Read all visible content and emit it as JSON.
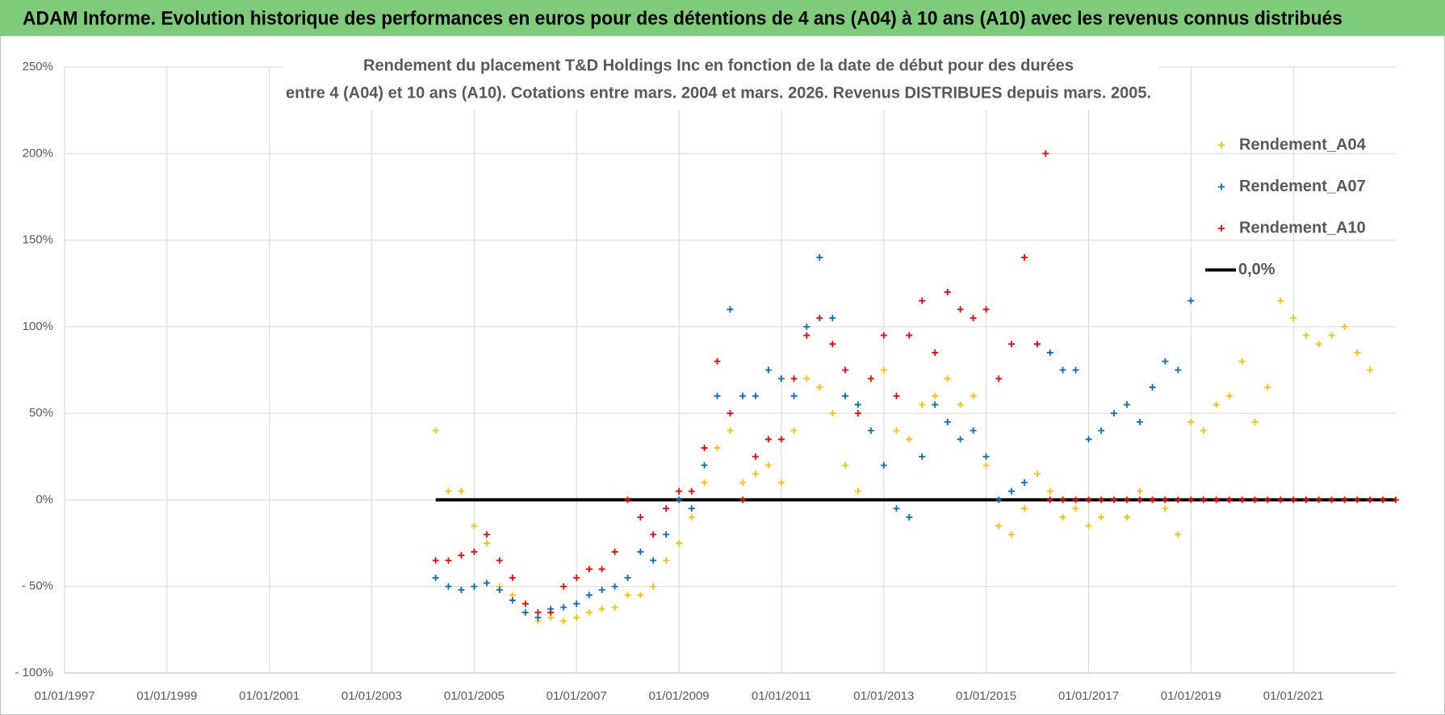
{
  "header": {
    "title": "ADAM Informe. Evolution historique des performances en euros pour des détentions de 4 ans (A04) à 10 ans (A10) avec les revenus connus distribués"
  },
  "chart_data": {
    "type": "scatter",
    "title": [
      "Rendement du placement T&D Holdings Inc en fonction de la date de début pour des durées",
      "entre 4 (A04) et 10 ans (A10). Cotations entre mars. 2004 et mars. 2026. Revenus DISTRIBUES depuis mars. 2005."
    ],
    "xlim": [
      "1997-01-01",
      "2023-01-01"
    ],
    "xticks": [
      {
        "value": "1997-01-01",
        "label": "01/01/1997"
      },
      {
        "value": "1999-01-01",
        "label": "01/01/1999"
      },
      {
        "value": "2001-01-01",
        "label": "01/01/2001"
      },
      {
        "value": "2003-01-01",
        "label": "01/01/2003"
      },
      {
        "value": "2005-01-01",
        "label": "01/01/2005"
      },
      {
        "value": "2007-01-01",
        "label": "01/01/2007"
      },
      {
        "value": "2009-01-01",
        "label": "01/01/2009"
      },
      {
        "value": "2011-01-01",
        "label": "01/01/2011"
      },
      {
        "value": "2013-01-01",
        "label": "01/01/2013"
      },
      {
        "value": "2015-01-01",
        "label": "01/01/2015"
      },
      {
        "value": "2017-01-01",
        "label": "01/01/2017"
      },
      {
        "value": "2019-01-01",
        "label": "01/01/2019"
      },
      {
        "value": "2021-01-01",
        "label": "01/01/2021"
      }
    ],
    "ylim": [
      -100,
      250
    ],
    "yticks": [
      {
        "value": -100,
        "label": "- 100%"
      },
      {
        "value": -50,
        "label": "- 50%"
      },
      {
        "value": 0,
        "label": "0%"
      },
      {
        "value": 50,
        "label": "50%"
      },
      {
        "value": 100,
        "label": "100%"
      },
      {
        "value": 150,
        "label": "150%"
      },
      {
        "value": 200,
        "label": "200%"
      },
      {
        "value": 250,
        "label": "250%"
      }
    ],
    "grid": true,
    "legend": "right",
    "series": [
      {
        "name": "Rendement_A04",
        "color": "#ffc000",
        "x": [
          "2004-04-01",
          "2004-07-01",
          "2004-10-01",
          "2005-01-01",
          "2005-04-01",
          "2005-07-01",
          "2005-10-01",
          "2006-01-01",
          "2006-04-01",
          "2006-07-01",
          "2006-10-01",
          "2007-01-01",
          "2007-04-01",
          "2007-07-01",
          "2007-10-01",
          "2008-01-01",
          "2008-04-01",
          "2008-07-01",
          "2008-10-01",
          "2009-01-01",
          "2009-04-01",
          "2009-07-01",
          "2009-10-01",
          "2010-01-01",
          "2010-04-01",
          "2010-07-01",
          "2010-10-01",
          "2011-01-01",
          "2011-04-01",
          "2011-07-01",
          "2011-10-01",
          "2012-01-01",
          "2012-04-01",
          "2012-07-01",
          "2012-10-01",
          "2013-01-01",
          "2013-04-01",
          "2013-07-01",
          "2013-10-01",
          "2014-01-01",
          "2014-04-01",
          "2014-07-01",
          "2014-10-01",
          "2015-01-01",
          "2015-04-01",
          "2015-07-01",
          "2015-10-01",
          "2016-01-01",
          "2016-04-01",
          "2016-07-01",
          "2016-10-01",
          "2017-01-01",
          "2017-04-01",
          "2017-07-01",
          "2017-10-01",
          "2018-01-01",
          "2018-04-01",
          "2018-07-01",
          "2018-10-01",
          "2019-01-01",
          "2019-04-01",
          "2019-07-01",
          "2019-10-01",
          "2020-01-01",
          "2020-04-01",
          "2020-07-01",
          "2020-10-01",
          "2021-01-01",
          "2021-04-01",
          "2021-07-01",
          "2021-10-01",
          "2022-01-01",
          "2022-04-01",
          "2022-07-01"
        ],
        "values": [
          40,
          5,
          5,
          -15,
          -25,
          -50,
          -55,
          -65,
          -70,
          -68,
          -70,
          -68,
          -65,
          -63,
          -62,
          -55,
          -55,
          -50,
          -35,
          -25,
          -10,
          10,
          30,
          40,
          10,
          15,
          20,
          10,
          40,
          70,
          65,
          50,
          20,
          5,
          40,
          75,
          40,
          35,
          55,
          60,
          70,
          55,
          60,
          20,
          -15,
          -20,
          -5,
          15,
          5,
          -10,
          -5,
          -15,
          -10,
          0,
          -10,
          5,
          0,
          -5,
          -20,
          45,
          40,
          55,
          60,
          80,
          45,
          65,
          115,
          105,
          95,
          90,
          95,
          100,
          85,
          75
        ]
      },
      {
        "name": "Rendement_A07",
        "color": "#0070c0",
        "x": [
          "2004-04-01",
          "2004-07-01",
          "2004-10-01",
          "2005-01-01",
          "2005-04-01",
          "2005-07-01",
          "2005-10-01",
          "2006-01-01",
          "2006-04-01",
          "2006-07-01",
          "2006-10-01",
          "2007-01-01",
          "2007-04-01",
          "2007-07-01",
          "2007-10-01",
          "2008-01-01",
          "2008-04-01",
          "2008-07-01",
          "2008-10-01",
          "2009-01-01",
          "2009-04-01",
          "2009-07-01",
          "2009-10-01",
          "2010-01-01",
          "2010-04-01",
          "2010-07-01",
          "2010-10-01",
          "2011-01-01",
          "2011-04-01",
          "2011-07-01",
          "2011-10-01",
          "2012-01-01",
          "2012-04-01",
          "2012-07-01",
          "2012-10-01",
          "2013-01-01",
          "2013-04-01",
          "2013-07-01",
          "2013-10-01",
          "2014-01-01",
          "2014-04-01",
          "2014-07-01",
          "2014-10-01",
          "2015-01-01",
          "2015-04-01",
          "2015-07-01",
          "2015-10-01",
          "2016-01-01",
          "2016-04-01",
          "2016-07-01",
          "2016-10-01",
          "2017-01-01",
          "2017-04-01",
          "2017-07-01",
          "2017-10-01",
          "2018-01-01",
          "2018-04-01",
          "2018-07-01",
          "2018-10-01",
          "2019-01-01"
        ],
        "values": [
          -45,
          -50,
          -52,
          -50,
          -48,
          -52,
          -58,
          -65,
          -68,
          -63,
          -62,
          -60,
          -55,
          -52,
          -50,
          -45,
          -30,
          -35,
          -20,
          0,
          -5,
          20,
          60,
          110,
          60,
          60,
          75,
          70,
          60,
          100,
          140,
          105,
          60,
          55,
          40,
          20,
          -5,
          -10,
          25,
          55,
          45,
          35,
          40,
          25,
          0,
          5,
          10,
          90,
          85,
          75,
          75,
          35,
          40,
          50,
          55,
          45,
          65,
          80,
          75,
          115
        ]
      },
      {
        "name": "Rendement_A10",
        "color": "#ff0000",
        "x": [
          "2004-04-01",
          "2004-07-01",
          "2004-10-01",
          "2005-01-01",
          "2005-04-01",
          "2005-07-01",
          "2005-10-01",
          "2006-01-01",
          "2006-04-01",
          "2006-07-01",
          "2006-10-01",
          "2007-01-01",
          "2007-04-01",
          "2007-07-01",
          "2007-10-01",
          "2008-01-01",
          "2008-04-01",
          "2008-07-01",
          "2008-10-01",
          "2009-01-01",
          "2009-04-01",
          "2009-07-01",
          "2009-10-01",
          "2010-01-01",
          "2010-04-01",
          "2010-07-01",
          "2010-10-01",
          "2011-01-01",
          "2011-04-01",
          "2011-07-01",
          "2011-10-01",
          "2012-01-01",
          "2012-04-01",
          "2012-07-01",
          "2012-10-01",
          "2013-01-01",
          "2013-04-01",
          "2013-07-01",
          "2013-10-01",
          "2014-01-01",
          "2014-04-01",
          "2014-07-01",
          "2014-10-01",
          "2015-01-01",
          "2015-04-01",
          "2015-07-01",
          "2015-10-01",
          "2016-01-01",
          "2016-03-01",
          "2016-04-01",
          "2016-07-01",
          "2016-10-01",
          "2017-01-01",
          "2017-04-01",
          "2017-07-01",
          "2017-10-01",
          "2018-01-01",
          "2018-04-01",
          "2018-07-01",
          "2018-10-01",
          "2019-01-01",
          "2019-04-01",
          "2019-07-01",
          "2019-10-01",
          "2020-01-01",
          "2020-04-01",
          "2020-07-01",
          "2020-10-01",
          "2021-01-01",
          "2021-04-01",
          "2021-07-01",
          "2021-10-01",
          "2022-01-01",
          "2022-04-01",
          "2022-07-01",
          "2022-10-01",
          "2023-01-01"
        ],
        "values": [
          -35,
          -35,
          -32,
          -30,
          -20,
          -35,
          -45,
          -60,
          -65,
          -65,
          -50,
          -45,
          -40,
          -40,
          -30,
          0,
          -10,
          -20,
          -5,
          5,
          5,
          30,
          80,
          50,
          0,
          25,
          35,
          35,
          70,
          95,
          105,
          90,
          75,
          50,
          70,
          95,
          60,
          95,
          115,
          85,
          120,
          110,
          105,
          110,
          70,
          90,
          140,
          90,
          200,
          0,
          0,
          0,
          0,
          0,
          0,
          0,
          0,
          0,
          0,
          0,
          0,
          0,
          0,
          0,
          0,
          0,
          0,
          0,
          0,
          0,
          0,
          0,
          0,
          0,
          0,
          0,
          0
        ]
      },
      {
        "name": "0,0%",
        "color": "#000000",
        "type": "line",
        "x": [
          "2004-04-01",
          "2023-01-01"
        ],
        "values": [
          0,
          0
        ]
      }
    ]
  }
}
